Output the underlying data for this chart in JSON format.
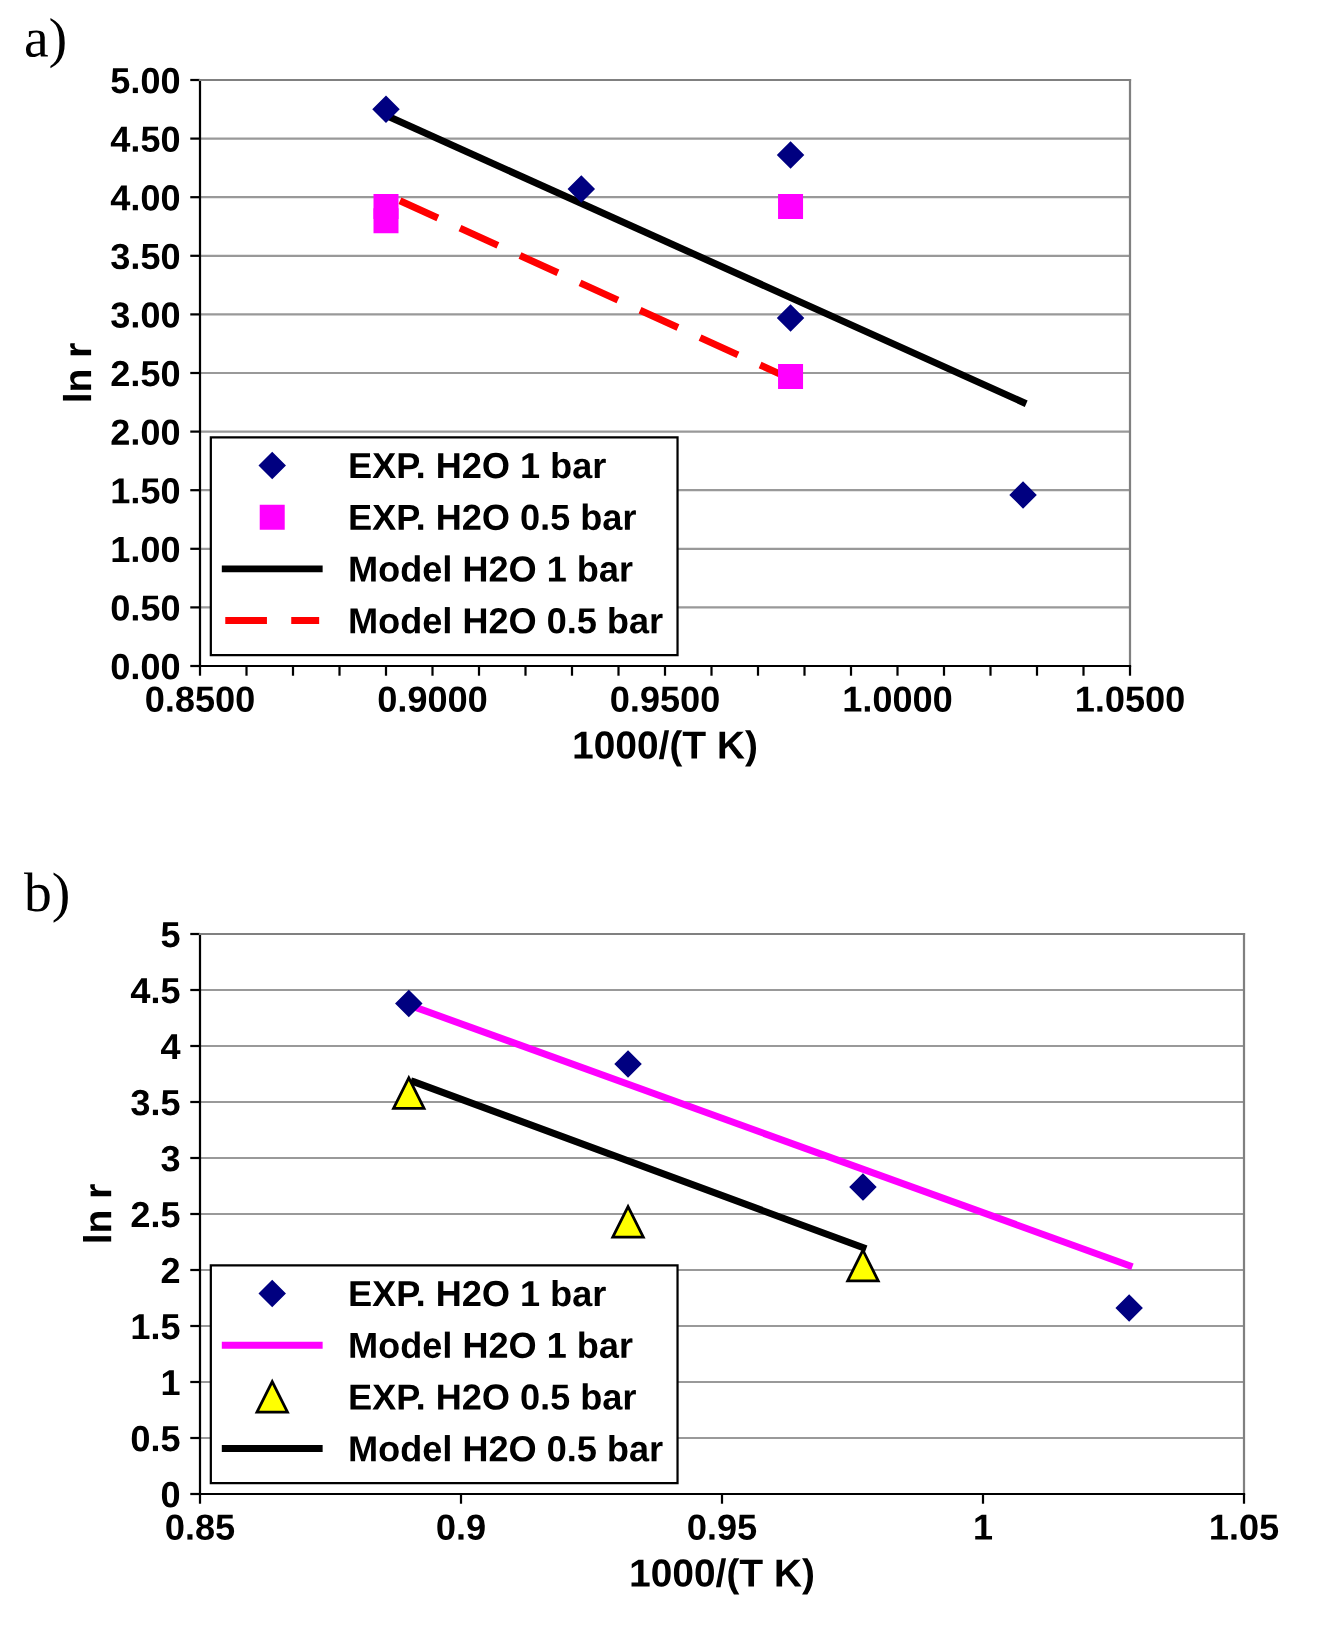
{
  "chart_data": [
    {
      "type": "scatter",
      "title": "a)",
      "xlabel": "1000/(T K)",
      "ylabel": "ln r",
      "xlim": [
        0.85,
        1.05
      ],
      "xticks": [
        {
          "value": 0.85,
          "label": "0.8500"
        },
        {
          "value": 0.86,
          "label": null
        },
        {
          "value": 0.87,
          "label": null
        },
        {
          "value": 0.88,
          "label": null
        },
        {
          "value": 0.89,
          "label": null
        },
        {
          "value": 0.9,
          "label": "0.9000"
        },
        {
          "value": 0.91,
          "label": null
        },
        {
          "value": 0.92,
          "label": null
        },
        {
          "value": 0.93,
          "label": null
        },
        {
          "value": 0.94,
          "label": null
        },
        {
          "value": 0.95,
          "label": "0.9500"
        },
        {
          "value": 0.96,
          "label": null
        },
        {
          "value": 0.97,
          "label": null
        },
        {
          "value": 0.98,
          "label": null
        },
        {
          "value": 0.99,
          "label": null
        },
        {
          "value": 1.0,
          "label": "1.0000"
        },
        {
          "value": 1.01,
          "label": null
        },
        {
          "value": 1.02,
          "label": null
        },
        {
          "value": 1.03,
          "label": null
        },
        {
          "value": 1.04,
          "label": null
        },
        {
          "value": 1.05,
          "label": "1.0500"
        }
      ],
      "ylim": [
        0,
        5
      ],
      "yticks": [
        {
          "value": 0,
          "label": "0.00"
        },
        {
          "value": 0.5,
          "label": "0.50"
        },
        {
          "value": 1,
          "label": "1.00"
        },
        {
          "value": 1.5,
          "label": "1.50"
        },
        {
          "value": 2,
          "label": "2.00"
        },
        {
          "value": 2.5,
          "label": "2.50"
        },
        {
          "value": 3,
          "label": "3.00"
        },
        {
          "value": 3.5,
          "label": "3.50"
        },
        {
          "value": 4,
          "label": "4.00"
        },
        {
          "value": 4.5,
          "label": "4.50"
        },
        {
          "value": 5,
          "label": "5.00"
        }
      ],
      "grid": "y",
      "legend": "bottom left",
      "series": [
        {
          "name": "EXP. H2O 1 bar",
          "marker": "diamond",
          "color": "#000080",
          "x": [
            0.89,
            0.932,
            0.977,
            0.977,
            1.027
          ],
          "values": [
            4.75,
            4.07,
            4.36,
            2.97,
            1.46
          ]
        },
        {
          "name": "EXP. H2O 0.5 bar",
          "marker": "square",
          "color": "#ff00ff",
          "x": [
            0.89,
            0.89,
            0.977,
            0.977
          ],
          "values": [
            3.92,
            3.8,
            3.92,
            2.47
          ]
        },
        {
          "name": "Model H2O 1 bar",
          "type": "line",
          "line_style": "solid",
          "color": "#000000",
          "x": [
            0.891,
            1.027
          ],
          "values": [
            4.68,
            2.25
          ]
        },
        {
          "name": "Model H2O 0.5 bar",
          "type": "line",
          "line_style": "dashed",
          "color": "#ff0000",
          "x": [
            0.893,
            0.977
          ],
          "values": [
            3.97,
            2.45
          ]
        }
      ]
    },
    {
      "type": "scatter",
      "title": "b)",
      "xlabel": "1000/(T K)",
      "ylabel": "ln r",
      "xlim": [
        0.85,
        1.05
      ],
      "xticks": [
        0.85,
        0.9,
        0.95,
        1,
        1.05
      ],
      "ylim": [
        0,
        5
      ],
      "yticks": [
        0,
        0.5,
        1,
        1.5,
        2,
        2.5,
        3,
        3.5,
        4,
        4.5,
        5
      ],
      "grid": "y",
      "legend": "bottom left",
      "series": [
        {
          "name": "EXP. H2O 1 bar",
          "marker": "diamond",
          "color": "#000080",
          "x": [
            0.89,
            0.932,
            0.977,
            1.028
          ],
          "values": [
            4.38,
            3.84,
            2.74,
            1.66
          ]
        },
        {
          "name": "Model H2O 1 bar",
          "type": "line",
          "line_style": "solid",
          "color": "#ff00ff",
          "x": [
            0.891,
            1.028
          ],
          "values": [
            4.35,
            2.04
          ]
        },
        {
          "name": "EXP. H2O 0.5 bar",
          "marker": "triangle",
          "color": "#ffff00",
          "x": [
            0.89,
            0.932,
            0.977
          ],
          "values": [
            3.58,
            2.43,
            2.04
          ]
        },
        {
          "name": "Model H2O 0.5 bar",
          "type": "line",
          "line_style": "solid",
          "color": "#000000",
          "x": [
            0.891,
            0.977
          ],
          "values": [
            3.68,
            2.2
          ]
        }
      ]
    }
  ]
}
